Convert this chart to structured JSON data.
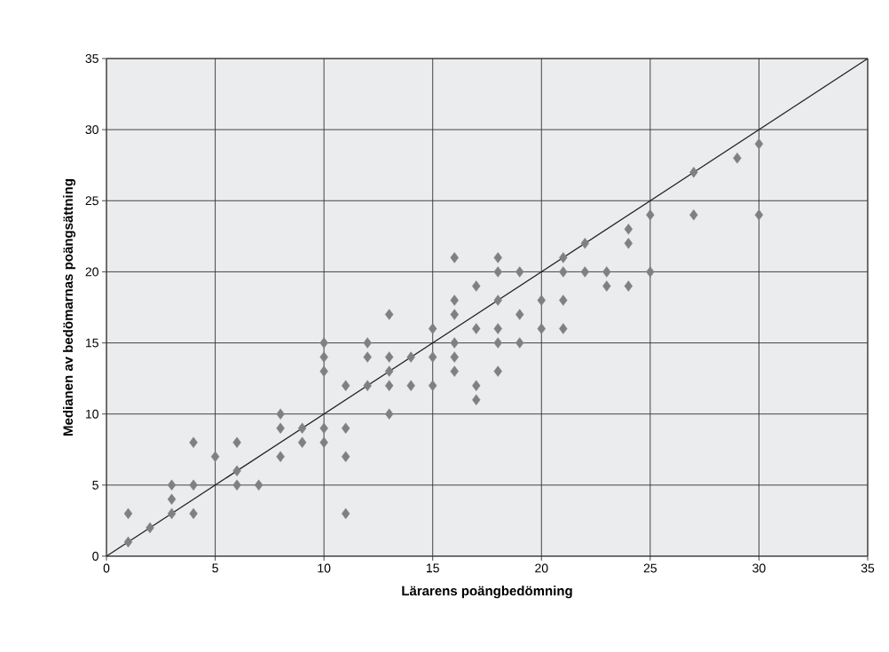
{
  "chart_data": {
    "type": "scatter",
    "xlabel": "Lärarens poängbedömning",
    "ylabel": "Medianen av bedömarnas poängsättning",
    "xlim": [
      0,
      35
    ],
    "ylim": [
      0,
      35
    ],
    "xticks": [
      0,
      5,
      10,
      15,
      20,
      25,
      30,
      35
    ],
    "yticks": [
      0,
      5,
      10,
      15,
      20,
      25,
      30,
      35
    ],
    "grid": true,
    "marker": "diamond",
    "series": [
      {
        "color": "#808080",
        "x": [
          1,
          1,
          2,
          3,
          3,
          3,
          4,
          4,
          4,
          5,
          6,
          6,
          6,
          7,
          8,
          8,
          8,
          9,
          9,
          10,
          10,
          10,
          10,
          10,
          11,
          11,
          11,
          11,
          12,
          12,
          12,
          13,
          13,
          13,
          13,
          13,
          14,
          14,
          15,
          15,
          15,
          16,
          16,
          16,
          16,
          16,
          16,
          17,
          17,
          17,
          17,
          18,
          18,
          18,
          18,
          18,
          18,
          19,
          19,
          19,
          20,
          20,
          21,
          21,
          21,
          21,
          22,
          22,
          23,
          23,
          24,
          24,
          24,
          25,
          25,
          27,
          27,
          29,
          30,
          30
        ],
        "values": [
          3,
          1,
          2,
          5,
          4,
          3,
          8,
          5,
          3,
          7,
          8,
          6,
          5,
          5,
          10,
          9,
          7,
          9,
          8,
          15,
          14,
          13,
          9,
          8,
          12,
          9,
          7,
          3,
          15,
          14,
          12,
          17,
          14,
          13,
          12,
          10,
          14,
          12,
          16,
          14,
          12,
          21,
          18,
          17,
          15,
          14,
          13,
          19,
          16,
          12,
          11,
          21,
          20,
          18,
          16,
          15,
          13,
          20,
          17,
          15,
          18,
          16,
          21,
          20,
          18,
          16,
          22,
          20,
          20,
          19,
          23,
          22,
          19,
          24,
          20,
          27,
          24,
          28,
          29,
          24
        ]
      },
      {
        "type": "line",
        "color": "#222222",
        "marker": "none",
        "x": [
          0,
          35
        ],
        "values": [
          0,
          35
        ]
      }
    ]
  }
}
